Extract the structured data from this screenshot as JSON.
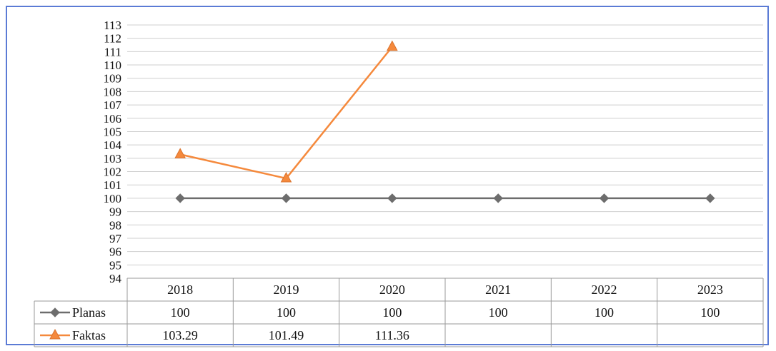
{
  "chart_data": {
    "type": "line",
    "categories": [
      "2018",
      "2019",
      "2020",
      "2021",
      "2022",
      "2023"
    ],
    "ylim": [
      94,
      113
    ],
    "ytick_step": 1,
    "grid": true,
    "legend": "data-table-left",
    "series": [
      {
        "name": "Planas",
        "color": "#6d6d6d",
        "marker": "diamond",
        "values": [
          100,
          100,
          100,
          100,
          100,
          100
        ],
        "labels": [
          "100",
          "100",
          "100",
          "100",
          "100",
          "100"
        ]
      },
      {
        "name": "Faktas",
        "color": "#f5893c",
        "marker": "triangle",
        "values": [
          103.29,
          101.49,
          111.36,
          null,
          null,
          null
        ],
        "labels": [
          "103.29",
          "101.49",
          "111.36",
          "",
          "",
          ""
        ]
      }
    ]
  }
}
